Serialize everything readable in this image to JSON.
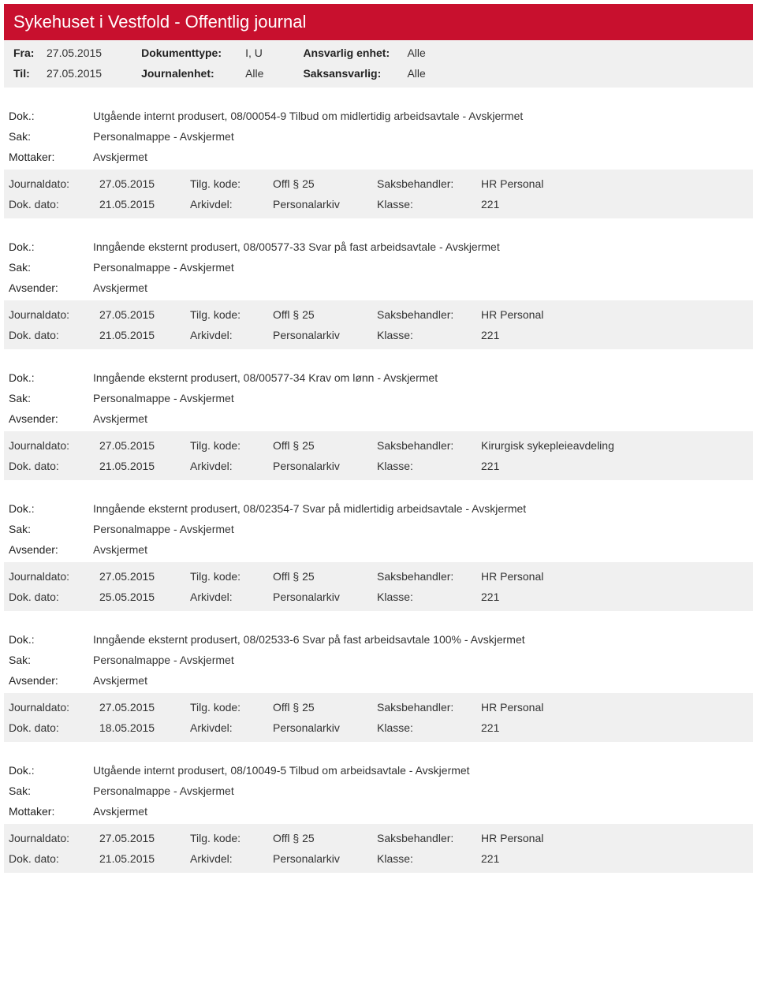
{
  "header_title": "Sykehuset i Vestfold - Offentlig journal",
  "filters": {
    "fra_label": "Fra:",
    "fra_val": "27.05.2015",
    "til_label": "Til:",
    "til_val": "27.05.2015",
    "doktype_label": "Dokumenttype:",
    "doktype_val": "I, U",
    "journalenhet_label": "Journalenhet:",
    "journalenhet_val": "Alle",
    "ansvarlig_label": "Ansvarlig enhet:",
    "ansvarlig_val": "Alle",
    "saksansvarlig_label": "Saksansvarlig:",
    "saksansvarlig_val": "Alle"
  },
  "labels": {
    "dok": "Dok.:",
    "sak": "Sak:",
    "mottaker": "Mottaker:",
    "avsender": "Avsender:",
    "journaldato": "Journaldato:",
    "dokdato": "Dok. dato:",
    "tilgkode": "Tilg. kode:",
    "arkivdel": "Arkivdel:",
    "saksbehandler": "Saksbehandler:",
    "klasse": "Klasse:"
  },
  "entries": [
    {
      "dok": "Utgående internt produsert, 08/00054-9 Tilbud om midlertidig arbeidsavtale - Avskjermet",
      "sak": "Personalmappe - Avskjermet",
      "party_label": "Mottaker:",
      "party_val": "Avskjermet",
      "journaldato": "27.05.2015",
      "dokdato": "21.05.2015",
      "tilgkode": "Offl § 25",
      "arkivdel": "Personalarkiv",
      "saksbehandler": "HR Personal",
      "klasse": "221"
    },
    {
      "dok": "Inngående eksternt produsert, 08/00577-33 Svar på fast arbeidsavtale - Avskjermet",
      "sak": "Personalmappe - Avskjermet",
      "party_label": "Avsender:",
      "party_val": "Avskjermet",
      "journaldato": "27.05.2015",
      "dokdato": "21.05.2015",
      "tilgkode": "Offl § 25",
      "arkivdel": "Personalarkiv",
      "saksbehandler": "HR Personal",
      "klasse": "221"
    },
    {
      "dok": "Inngående eksternt produsert, 08/00577-34 Krav om lønn - Avskjermet",
      "sak": "Personalmappe - Avskjermet",
      "party_label": "Avsender:",
      "party_val": "Avskjermet",
      "journaldato": "27.05.2015",
      "dokdato": "21.05.2015",
      "tilgkode": "Offl § 25",
      "arkivdel": "Personalarkiv",
      "saksbehandler": "Kirurgisk sykepleieavdeling",
      "klasse": "221"
    },
    {
      "dok": "Inngående eksternt produsert, 08/02354-7 Svar på midlertidig arbeidsavtale - Avskjermet",
      "sak": "Personalmappe - Avskjermet",
      "party_label": "Avsender:",
      "party_val": "Avskjermet",
      "journaldato": "27.05.2015",
      "dokdato": "25.05.2015",
      "tilgkode": "Offl § 25",
      "arkivdel": "Personalarkiv",
      "saksbehandler": "HR Personal",
      "klasse": "221"
    },
    {
      "dok": "Inngående eksternt produsert, 08/02533-6 Svar på fast arbeidsavtale 100% - Avskjermet",
      "sak": "Personalmappe - Avskjermet",
      "party_label": "Avsender:",
      "party_val": "Avskjermet",
      "journaldato": "27.05.2015",
      "dokdato": "18.05.2015",
      "tilgkode": "Offl § 25",
      "arkivdel": "Personalarkiv",
      "saksbehandler": "HR Personal",
      "klasse": "221"
    },
    {
      "dok": "Utgående internt produsert, 08/10049-5 Tilbud om arbeidsavtale - Avskjermet",
      "sak": "Personalmappe - Avskjermet",
      "party_label": "Mottaker:",
      "party_val": "Avskjermet",
      "journaldato": "27.05.2015",
      "dokdato": "21.05.2015",
      "tilgkode": "Offl § 25",
      "arkivdel": "Personalarkiv",
      "saksbehandler": "HR Personal",
      "klasse": "221"
    }
  ],
  "colors": {
    "header_bg": "#c8102e",
    "filter_bg": "#f0f0f0",
    "text": "#333333"
  }
}
